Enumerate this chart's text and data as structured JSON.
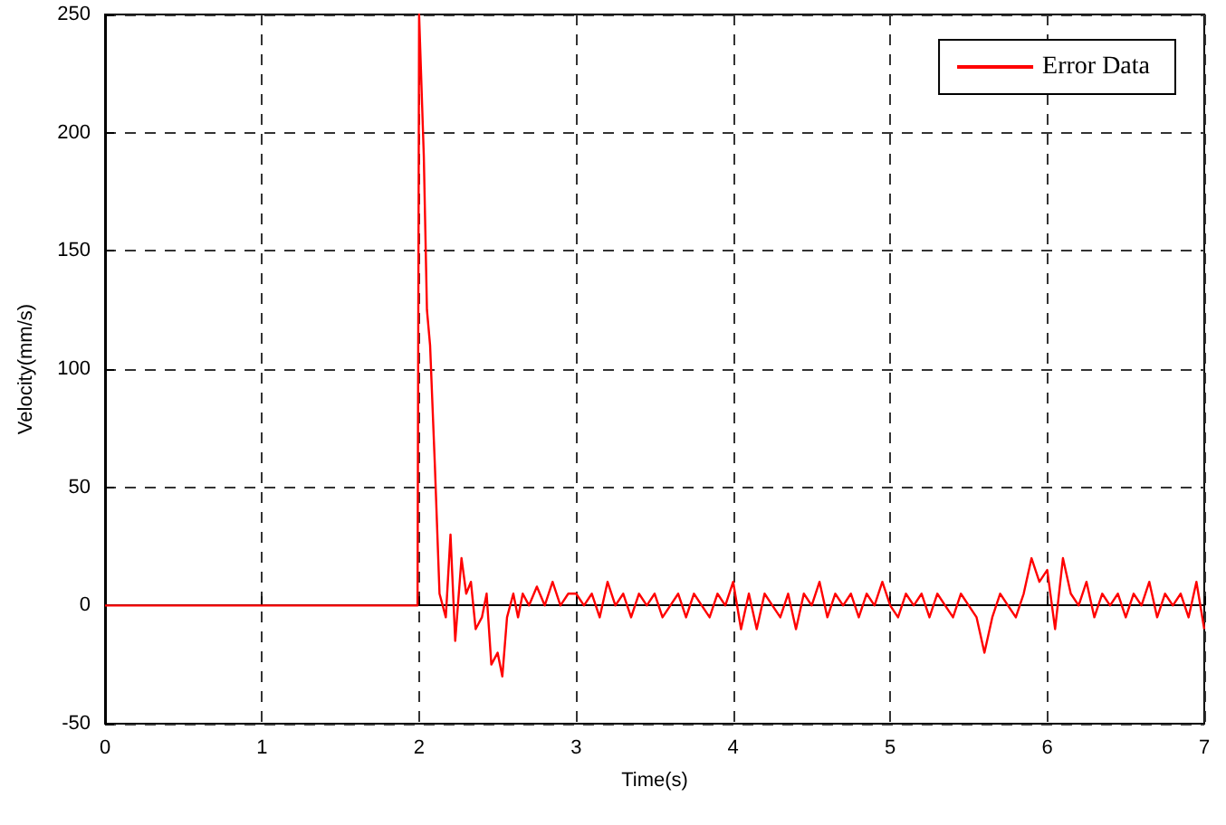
{
  "chart_data": {
    "type": "line",
    "xlabel": "Time(s)",
    "ylabel": "Velocity(mm/s)",
    "xlim": [
      0,
      7
    ],
    "xticks": [
      0,
      1,
      2,
      3,
      4,
      5,
      6,
      7
    ],
    "ylim": [
      -50,
      250
    ],
    "yticks": [
      -50,
      0,
      50,
      100,
      150,
      200,
      250
    ],
    "grid": true,
    "legend": "top right",
    "line_style": "solid",
    "marker": "none",
    "series": [
      {
        "name": "Error Data",
        "color": "#ff0000",
        "x": [
          0,
          1.99,
          2.0,
          2.03,
          2.05,
          2.07,
          2.1,
          2.13,
          2.17,
          2.2,
          2.23,
          2.27,
          2.3,
          2.33,
          2.36,
          2.4,
          2.43,
          2.46,
          2.5,
          2.53,
          2.56,
          2.6,
          2.63,
          2.66,
          2.7,
          2.75,
          2.8,
          2.85,
          2.9,
          2.95,
          3.0,
          3.05,
          3.1,
          3.15,
          3.2,
          3.25,
          3.3,
          3.35,
          3.4,
          3.45,
          3.5,
          3.55,
          3.6,
          3.65,
          3.7,
          3.75,
          3.8,
          3.85,
          3.9,
          3.95,
          4.0,
          4.05,
          4.1,
          4.15,
          4.2,
          4.25,
          4.3,
          4.35,
          4.4,
          4.45,
          4.5,
          4.55,
          4.6,
          4.65,
          4.7,
          4.75,
          4.8,
          4.85,
          4.9,
          4.95,
          5.0,
          5.05,
          5.1,
          5.15,
          5.2,
          5.25,
          5.3,
          5.35,
          5.4,
          5.45,
          5.5,
          5.55,
          5.6,
          5.65,
          5.7,
          5.75,
          5.8,
          5.85,
          5.9,
          5.95,
          6.0,
          6.05,
          6.1,
          6.15,
          6.2,
          6.25,
          6.3,
          6.35,
          6.4,
          6.45,
          6.5,
          6.55,
          6.6,
          6.65,
          6.7,
          6.75,
          6.8,
          6.85,
          6.9,
          6.95,
          7.0
        ],
        "values": [
          0,
          0,
          250,
          190,
          125,
          110,
          60,
          5,
          -5,
          30,
          -15,
          20,
          5,
          10,
          -10,
          -5,
          5,
          -25,
          -20,
          -30,
          -5,
          5,
          -5,
          5,
          0,
          8,
          0,
          10,
          0,
          5,
          5,
          0,
          5,
          -5,
          10,
          0,
          5,
          -5,
          5,
          0,
          5,
          -5,
          0,
          5,
          -5,
          5,
          0,
          -5,
          5,
          0,
          10,
          -10,
          5,
          -10,
          5,
          0,
          -5,
          5,
          -10,
          5,
          0,
          10,
          -5,
          5,
          0,
          5,
          -5,
          5,
          0,
          10,
          0,
          -5,
          5,
          0,
          5,
          -5,
          5,
          0,
          -5,
          5,
          0,
          -5,
          -20,
          -5,
          5,
          0,
          -5,
          5,
          20,
          10,
          15,
          -10,
          20,
          5,
          0,
          10,
          -5,
          5,
          0,
          5,
          -5,
          5,
          0,
          10,
          -5,
          5,
          0,
          5,
          -5,
          10,
          -10
        ]
      }
    ]
  }
}
